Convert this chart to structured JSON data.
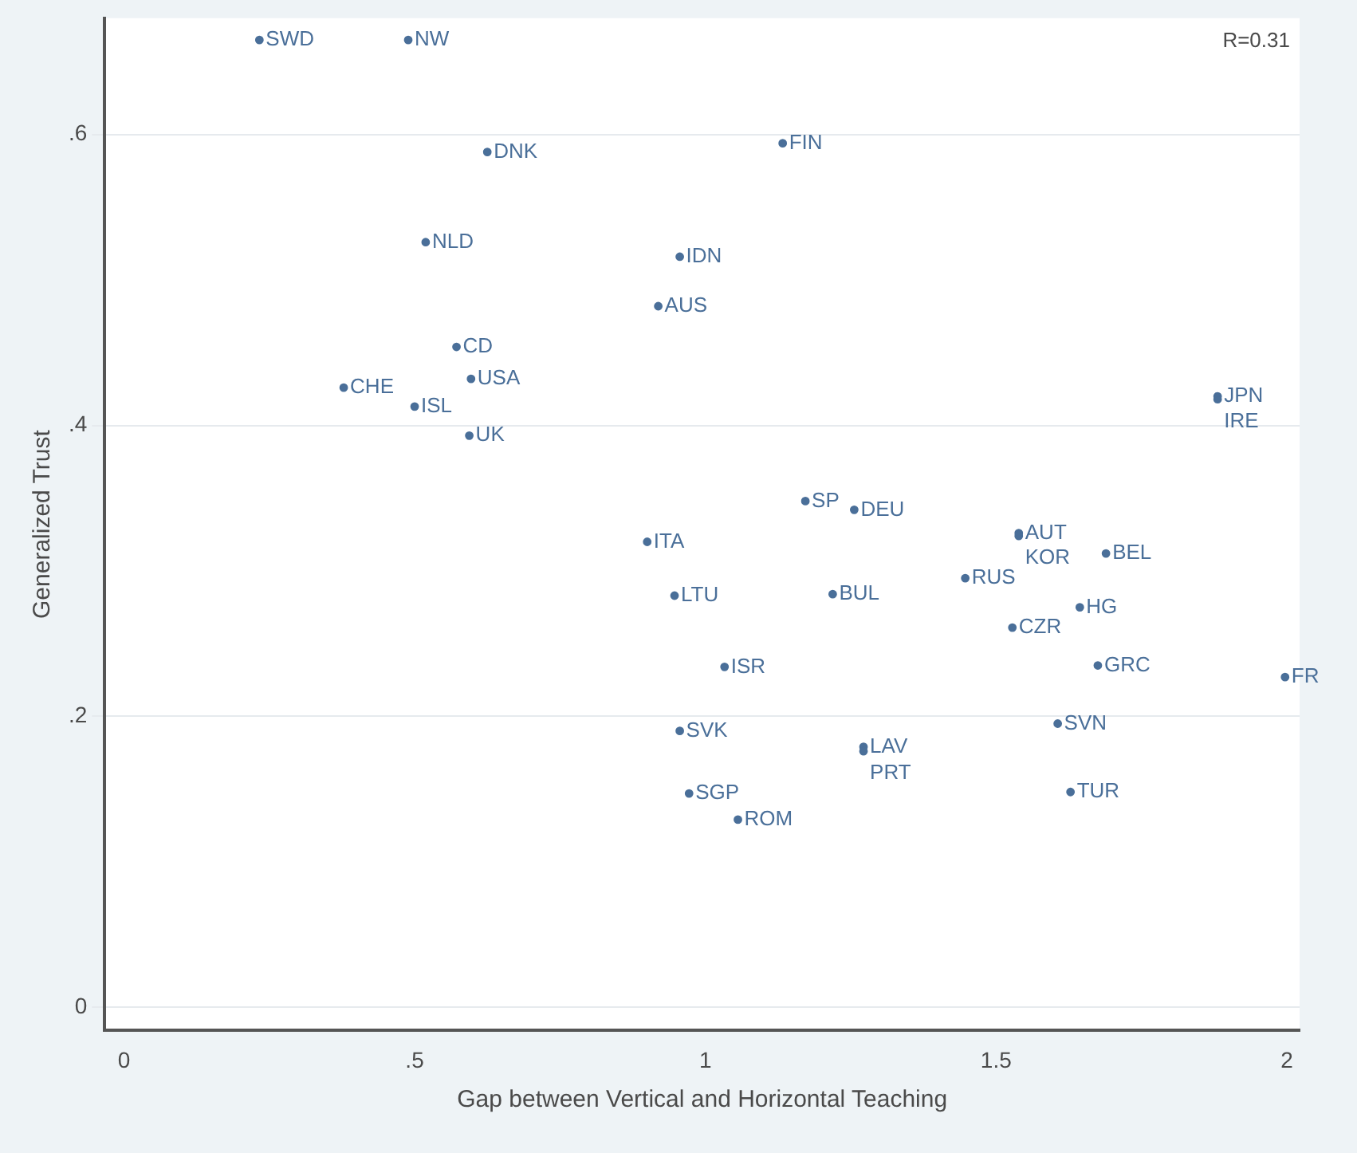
{
  "chart_data": {
    "type": "scatter",
    "xlabel": "Gap between Vertical and Horizontal Teaching",
    "ylabel": "Generalized Trust",
    "annotations": [
      "R=0.31"
    ],
    "xlim": [
      -0.033,
      2.022
    ],
    "ylim": [
      -0.016,
      0.68
    ],
    "xticks": [
      0,
      {
        "value": 0.5,
        "label": ".5"
      },
      1,
      1.5,
      2
    ],
    "yticks": [
      0,
      {
        "value": 0.2,
        "label": ".2"
      },
      {
        "value": 0.4,
        "label": ".4"
      },
      {
        "value": 0.6,
        "label": ".6"
      }
    ],
    "grid": "y",
    "legend": false,
    "marker": "circle",
    "series": [
      {
        "color": "#4a6f99",
        "x": [
          0.233,
          0.489,
          0.625,
          1.133,
          0.519,
          0.956,
          0.919,
          0.572,
          0.597,
          0.378,
          0.5,
          0.594,
          1.881,
          1.881,
          1.997,
          1.172,
          1.256,
          0.9,
          1.539,
          1.539,
          1.689,
          1.447,
          0.947,
          1.219,
          1.644,
          1.528,
          1.033,
          1.675,
          0.956,
          1.272,
          1.272,
          1.606,
          0.972,
          1.056,
          1.628
        ],
        "values": [
          0.665,
          0.665,
          0.588,
          0.594,
          0.526,
          0.516,
          0.482,
          0.454,
          0.432,
          0.426,
          0.413,
          0.393,
          0.42,
          0.418,
          0.227,
          0.348,
          0.342,
          0.32,
          0.326,
          0.324,
          0.312,
          0.295,
          0.283,
          0.284,
          0.275,
          0.261,
          0.234,
          0.235,
          0.19,
          0.179,
          0.176,
          0.195,
          0.147,
          0.129,
          0.148
        ],
        "value_labels": [
          "SWD",
          "NW",
          "DNK",
          "FIN",
          "NLD",
          "IDN",
          "AUS",
          "CD",
          "USA",
          "CHE",
          "ISL",
          "UK",
          "JPN",
          "IRE",
          "FR",
          "SP",
          "DEU",
          "ITA",
          "AUT",
          "KOR",
          "BEL",
          "RUS",
          "LTU",
          "BUL",
          "HG",
          "CZR",
          "ISR",
          "GRC",
          "SVK",
          "LAV",
          "PRT",
          "SVN",
          "SGP",
          "ROM",
          "TUR"
        ]
      }
    ]
  }
}
